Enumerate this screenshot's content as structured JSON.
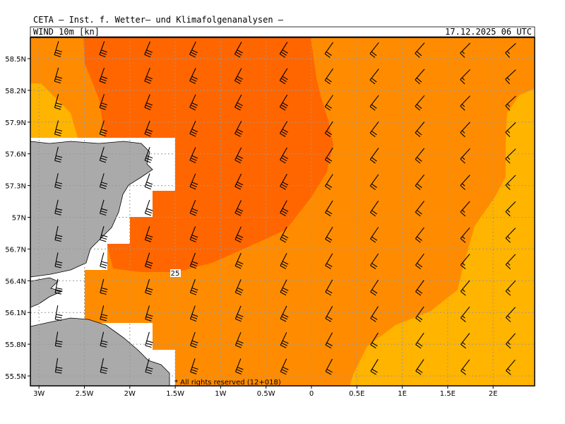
{
  "header": {
    "title": "CETA — Inst. f. Wetter— und Klimafolgenanalysen —",
    "field": "WIND 10m [kn]",
    "valid": "17.12.2025 06 UTC"
  },
  "map": {
    "lat_ticks": [
      {
        "value": 58.5,
        "label": "58.5N"
      },
      {
        "value": 58.2,
        "label": "58.2N"
      },
      {
        "value": 57.9,
        "label": "57.9N"
      },
      {
        "value": 57.6,
        "label": "57.6N"
      },
      {
        "value": 57.3,
        "label": "57.3N"
      },
      {
        "value": 57,
        "label": "57N"
      },
      {
        "value": 56.7,
        "label": "56.7N"
      },
      {
        "value": 56.4,
        "label": "56.4N"
      },
      {
        "value": 56.1,
        "label": "56.1N"
      },
      {
        "value": 55.8,
        "label": "55.8N"
      },
      {
        "value": 55.5,
        "label": "55.5N"
      }
    ],
    "lon_ticks": [
      {
        "value": -3,
        "label": "3W"
      },
      {
        "value": -2.5,
        "label": "2.5W"
      },
      {
        "value": -2,
        "label": "2W"
      },
      {
        "value": -1.5,
        "label": "1.5W"
      },
      {
        "value": -1,
        "label": "1W"
      },
      {
        "value": -0.5,
        "label": "0.5W"
      },
      {
        "value": 0,
        "label": "0"
      },
      {
        "value": 0.5,
        "label": "0.5E"
      },
      {
        "value": 1,
        "label": "1E"
      },
      {
        "value": 1.5,
        "label": "1.5E"
      },
      {
        "value": 2,
        "label": "2E"
      }
    ],
    "contour_label": "25",
    "copyright": "* All rights reserved (12+018)"
  }
}
